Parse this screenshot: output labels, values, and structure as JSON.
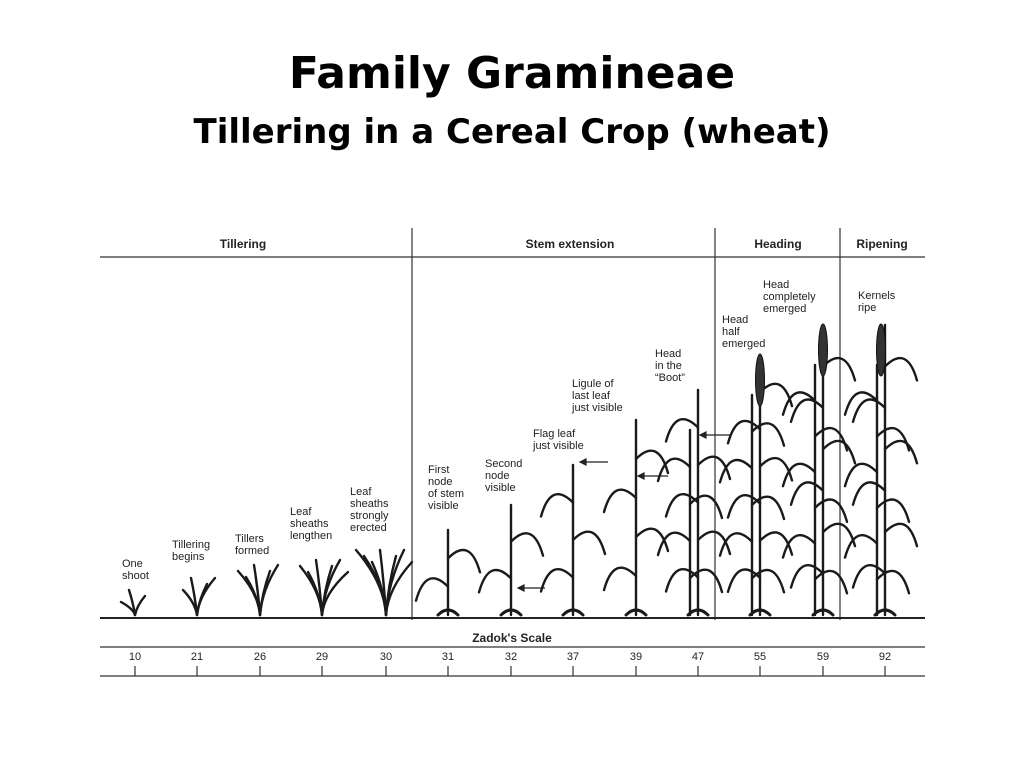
{
  "title": "Family  Gramineae",
  "subtitle": "Tillering  in  a  Cereal  Crop  (wheat)",
  "phases": [
    {
      "label": "Tillering"
    },
    {
      "label": "Stem extension"
    },
    {
      "label": "Heading"
    },
    {
      "label": "Ripening"
    }
  ],
  "plants": [
    {
      "label": [
        "One",
        "shoot"
      ]
    },
    {
      "label": [
        "Tillering",
        "begins"
      ]
    },
    {
      "label": [
        "Tillers",
        "formed"
      ]
    },
    {
      "label": [
        "Leaf",
        "sheaths",
        "lengthen"
      ]
    },
    {
      "label": [
        "Leaf",
        "sheaths",
        "strongly",
        "erected"
      ]
    },
    {
      "label": [
        "First",
        "node",
        "of stem",
        "visible"
      ]
    },
    {
      "label": [
        "Second",
        "node",
        "visible"
      ]
    },
    {
      "label": [
        "Flag leaf",
        "just visible"
      ]
    },
    {
      "label": [
        "Ligule of",
        "last leaf",
        "just visible"
      ]
    },
    {
      "label": [
        "Head",
        "in the",
        "“Boot”"
      ]
    },
    {
      "label": [
        "Head",
        "half",
        "emerged"
      ]
    },
    {
      "label": [
        "Head",
        "completely",
        "emerged"
      ]
    },
    {
      "label": [
        "Kernels",
        "ripe"
      ]
    }
  ],
  "scale": {
    "title": "Zadok's Scale",
    "ticks": [
      10,
      21,
      26,
      29,
      30,
      31,
      32,
      37,
      39,
      47,
      55,
      59,
      92
    ]
  }
}
